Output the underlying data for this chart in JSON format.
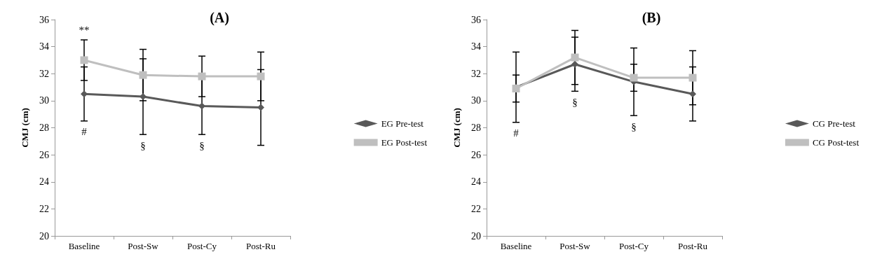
{
  "chart_data": [
    {
      "type": "line",
      "title": "(A)",
      "ylabel": "CMJ (cm)",
      "categories": [
        "Baseline",
        "Post-Sw",
        "Post-Cy",
        "Post-Ru"
      ],
      "ylim": [
        20,
        36
      ],
      "yticks": [
        20,
        22,
        24,
        26,
        28,
        30,
        32,
        34,
        36
      ],
      "grid": false,
      "legend": "right",
      "series": [
        {
          "name": "EG Pre-test",
          "color": "#595959",
          "marker": "diamond",
          "values": [
            30.5,
            30.3,
            29.6,
            29.5
          ],
          "errors": [
            2.0,
            2.8,
            2.1,
            2.8
          ]
        },
        {
          "name": "EG Post-test",
          "color": "#bfbfbf",
          "marker": "square",
          "values": [
            33.0,
            31.9,
            31.8,
            31.8
          ],
          "errors": [
            1.5,
            1.9,
            1.5,
            1.8
          ]
        }
      ],
      "annotations": [
        {
          "text": "**",
          "x": "Baseline",
          "y": 34.5
        },
        {
          "text": "#",
          "x": "Baseline",
          "y": 28.5
        },
        {
          "text": "§",
          "x": "Post-Sw",
          "y": 27.5
        },
        {
          "text": "§",
          "x": "Post-Cy",
          "y": 27.5
        }
      ]
    },
    {
      "type": "line",
      "title": "(B)",
      "ylabel": "CMJ (cm)",
      "categories": [
        "Baseline",
        "Post-Sw",
        "Post-Cy",
        "Post-Ru"
      ],
      "ylim": [
        20,
        36
      ],
      "yticks": [
        20,
        22,
        24,
        26,
        28,
        30,
        32,
        34,
        36
      ],
      "grid": false,
      "legend": "right",
      "series": [
        {
          "name": "CG Pre-test",
          "color": "#595959",
          "marker": "diamond",
          "values": [
            31.0,
            32.7,
            31.4,
            30.5
          ],
          "errors": [
            2.6,
            2.0,
            2.5,
            2.0
          ]
        },
        {
          "name": "CG Post-test",
          "color": "#bfbfbf",
          "marker": "square",
          "values": [
            30.9,
            33.2,
            31.7,
            31.7
          ],
          "errors": [
            1.0,
            2.0,
            1.0,
            2.0
          ]
        }
      ],
      "annotations": [
        {
          "text": "#",
          "x": "Baseline",
          "y": 28.4
        },
        {
          "text": "§",
          "x": "Post-Sw",
          "y": 30.7
        },
        {
          "text": "§",
          "x": "Post-Cy",
          "y": 28.9
        }
      ]
    }
  ]
}
